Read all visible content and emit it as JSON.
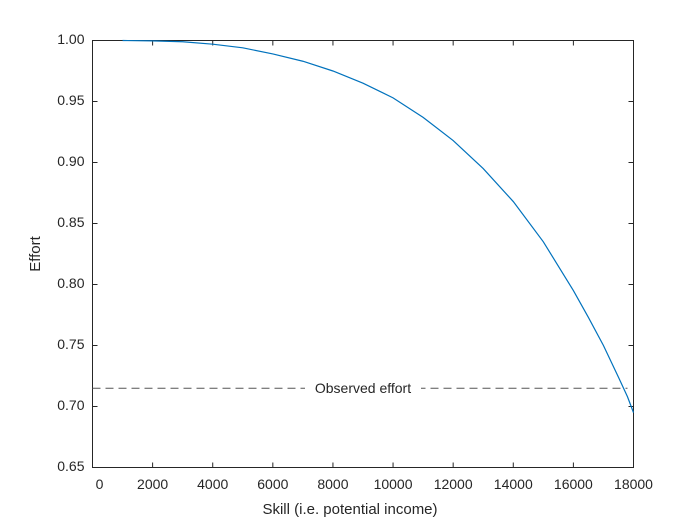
{
  "chart_data": {
    "type": "line",
    "xlabel": "Skill (i.e. potential income)",
    "ylabel": "Effort",
    "x": [
      1000,
      2000,
      3000,
      4000,
      5000,
      6000,
      7000,
      8000,
      9000,
      10000,
      11000,
      12000,
      13000,
      14000,
      15000,
      16000,
      16500,
      17000,
      17500,
      17800,
      18000
    ],
    "series": [
      {
        "color": "#0072bd",
        "values": [
          1.0,
          0.9997,
          0.999,
          0.997,
          0.994,
          0.989,
          0.983,
          0.975,
          0.965,
          0.953,
          0.937,
          0.918,
          0.895,
          0.868,
          0.835,
          0.795,
          0.773,
          0.75,
          0.724,
          0.708,
          0.695
        ]
      }
    ],
    "hline": {
      "value": 0.715,
      "xlim": [
        0,
        17800
      ],
      "color": "#555555",
      "label": "Observed effort",
      "label_x": 9000
    },
    "xlim": [
      0,
      18000
    ],
    "xticks": [
      0,
      2000,
      4000,
      6000,
      8000,
      10000,
      12000,
      14000,
      16000,
      18000
    ],
    "ylim": [
      0.65,
      1.0
    ],
    "yticks": [
      {
        "value": 0.65,
        "label": "0.65"
      },
      {
        "value": 0.7,
        "label": "0.70"
      },
      {
        "value": 0.75,
        "label": "0.75"
      },
      {
        "value": 0.8,
        "label": "0.80"
      },
      {
        "value": 0.85,
        "label": "0.85"
      },
      {
        "value": 0.9,
        "label": "0.90"
      },
      {
        "value": 0.95,
        "label": "0.95"
      },
      {
        "value": 1.0,
        "label": "1.00"
      }
    ]
  }
}
